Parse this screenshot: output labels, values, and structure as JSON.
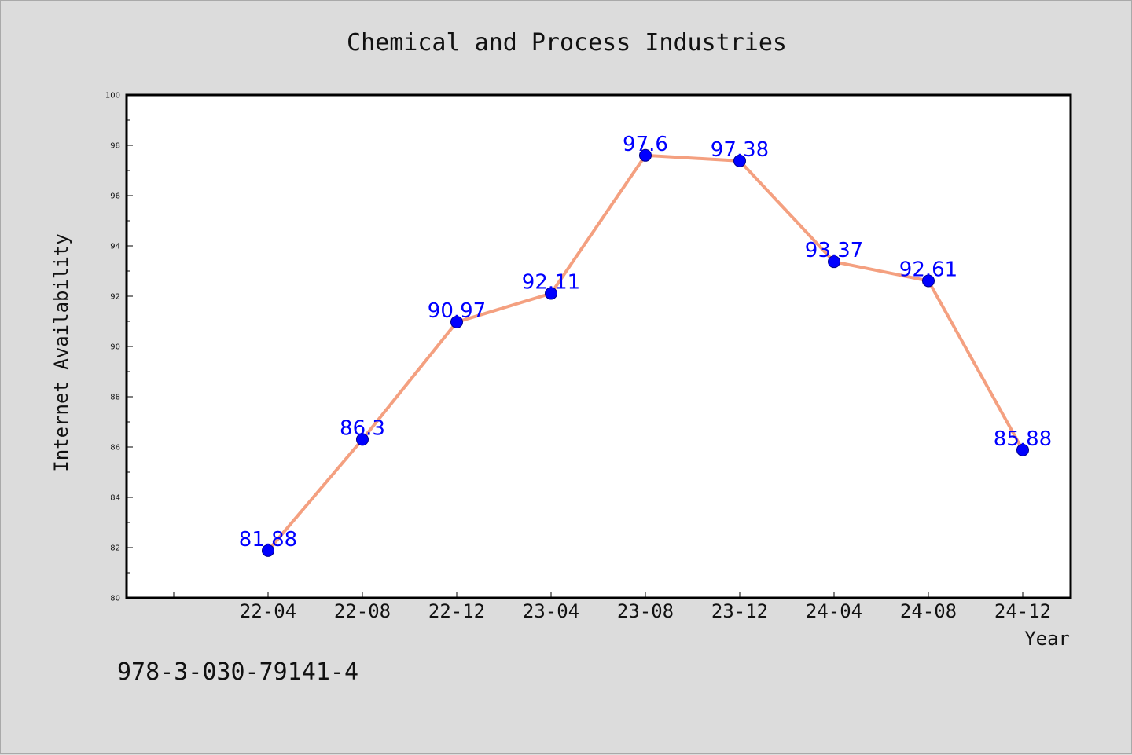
{
  "chart_data": {
    "type": "line",
    "title": "Chemical and Process Industries",
    "xlabel": "Year",
    "ylabel": "Internet Availability",
    "categories": [
      "22-04",
      "22-08",
      "22-12",
      "23-04",
      "23-08",
      "23-12",
      "24-04",
      "24-08",
      "24-12"
    ],
    "series": [
      {
        "values": [
          81.88,
          86.3,
          90.97,
          92.11,
          97.6,
          97.38,
          93.37,
          92.61,
          85.88
        ],
        "data_labels": [
          "81.88",
          "86.3",
          "90.97",
          "92.11",
          "97.6",
          "97.38",
          "93.37",
          "92.61",
          "85.88"
        ]
      }
    ],
    "ylim": [
      80,
      100
    ],
    "yticks": [
      "80",
      "82",
      "84",
      "86",
      "88",
      "90",
      "92",
      "94",
      "96",
      "98",
      "100"
    ],
    "grid": false,
    "colors": {
      "line": "#f4a080",
      "marker": "#0000ff",
      "label": "#0000ff",
      "background": "#dcdcdc",
      "plot_background": "#ffffff"
    }
  },
  "annotation": {
    "text": "978-3-030-79141-4"
  }
}
